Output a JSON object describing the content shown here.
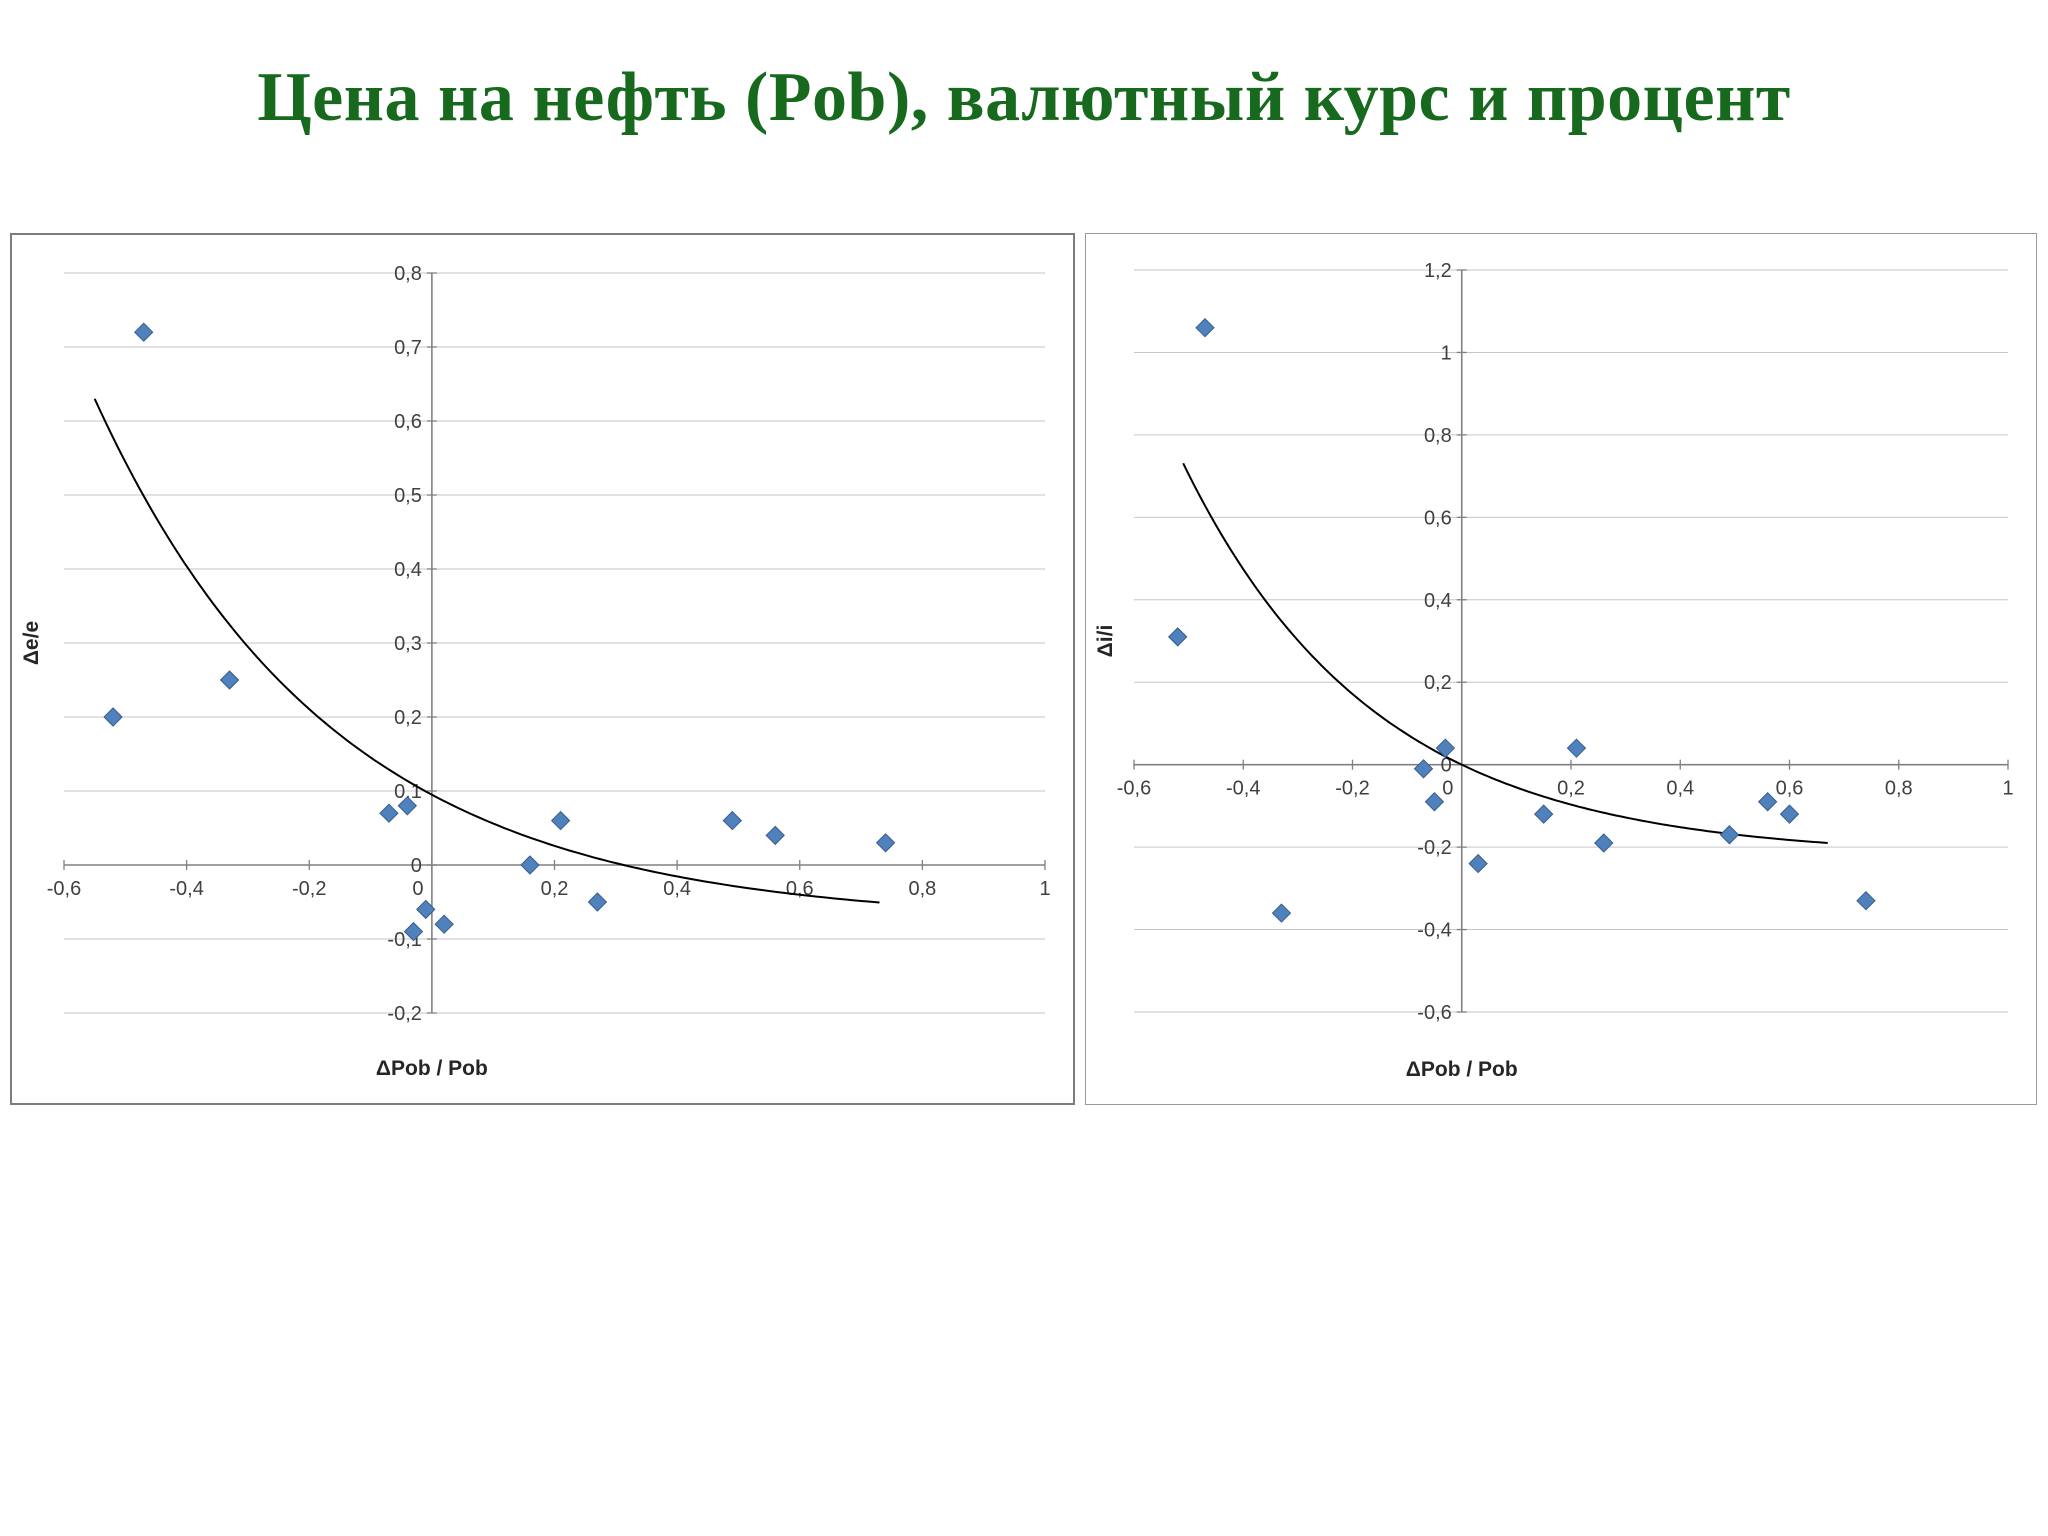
{
  "slide": {
    "title": "Цена на нефть (Pob), валютный курс и процент",
    "title_color": "#17691d",
    "background_color": "#ffffff"
  },
  "chart_data": [
    {
      "id": "exchange-rate-vs-oil-price",
      "type": "scatter",
      "title": "",
      "xlabel": "ΔPob / Pob",
      "ylabel": "Δe/e",
      "xlim": [
        -0.6,
        1
      ],
      "xstep": 0.2,
      "ylim": [
        -0.2,
        0.8
      ],
      "ystep": 0.1,
      "grid": "horizontal",
      "legend": "none",
      "decimal_separator": ",",
      "marker": {
        "shape": "diamond",
        "fill": "#4f81bd",
        "stroke": "#385d8a",
        "size": 9
      },
      "points": [
        [
          -0.52,
          0.2
        ],
        [
          -0.47,
          0.72
        ],
        [
          -0.33,
          0.25
        ],
        [
          -0.07,
          0.07
        ],
        [
          -0.04,
          0.08
        ],
        [
          -0.03,
          -0.09
        ],
        [
          -0.01,
          -0.06
        ],
        [
          0.02,
          -0.08
        ],
        [
          0.16,
          0.0
        ],
        [
          0.21,
          0.06
        ],
        [
          0.27,
          -0.05
        ],
        [
          0.49,
          0.06
        ],
        [
          0.56,
          0.04
        ],
        [
          0.74,
          0.03
        ]
      ],
      "trendline": {
        "type": "exponential",
        "formula": "y = 0.172·exp(-2.57x) - 0.077",
        "a": 0.172,
        "k": 2.57,
        "c": -0.077,
        "domain": [
          -0.55,
          0.73
        ],
        "color": "#000000"
      }
    },
    {
      "id": "interest-rate-vs-oil-price",
      "type": "scatter",
      "title": "",
      "xlabel": "ΔPob / Pob",
      "ylabel": "Δi/i",
      "xlim": [
        -0.6,
        1
      ],
      "xstep": 0.2,
      "ylim": [
        -0.6,
        1.2
      ],
      "ystep": 0.2,
      "grid": "horizontal",
      "legend": "none",
      "decimal_separator": ",",
      "marker": {
        "shape": "diamond",
        "fill": "#4f81bd",
        "stroke": "#385d8a",
        "size": 9
      },
      "points": [
        [
          -0.52,
          0.31
        ],
        [
          -0.47,
          1.06
        ],
        [
          -0.33,
          -0.36
        ],
        [
          -0.07,
          -0.01
        ],
        [
          -0.05,
          -0.09
        ],
        [
          -0.03,
          0.04
        ],
        [
          0.03,
          -0.24
        ],
        [
          0.15,
          -0.12
        ],
        [
          0.21,
          0.04
        ],
        [
          0.26,
          -0.19
        ],
        [
          0.49,
          -0.17
        ],
        [
          0.56,
          -0.09
        ],
        [
          0.6,
          -0.12
        ],
        [
          0.74,
          -0.33
        ]
      ],
      "trendline": {
        "type": "exponential",
        "formula": "y = 0.223·exp(-2.85x) - 0.223",
        "a": 0.223,
        "k": 2.85,
        "c": -0.223,
        "domain": [
          -0.51,
          0.67
        ],
        "color": "#000000"
      }
    }
  ],
  "chart_style": {
    "gridline_color": "#c6c6c6",
    "axis_color": "#808080",
    "tick_label_color": "#404040",
    "axis_title_color": "#262626"
  }
}
